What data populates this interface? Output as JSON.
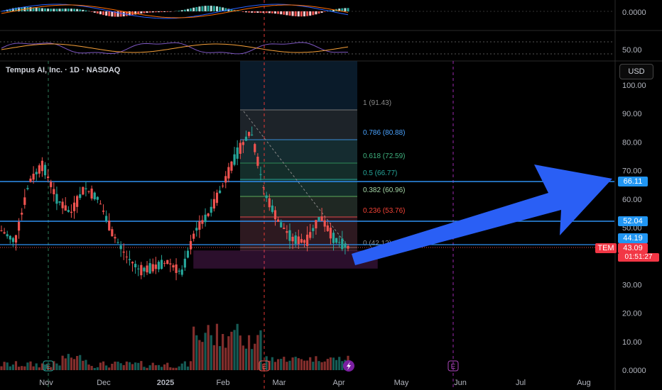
{
  "title": "Tempus AI, Inc. · 1D · NASDAQ",
  "currency": "USD",
  "colors": {
    "bg": "#000000",
    "up": "#26a69a",
    "down": "#ef5350",
    "level": "#2f8ff0",
    "arrow": "#2a5ff5",
    "zone": "#c545c9",
    "divider": "#444"
  },
  "osc": {
    "macd_tick": "0.0000",
    "rsi_tick": "50.00"
  },
  "price_axis": [
    "100.00",
    "90.00",
    "80.00",
    "70.00",
    "60.00",
    "50.00",
    "40.00",
    "30.00",
    "20.00",
    "10.00",
    "0.0000"
  ],
  "time_axis": [
    "Nov",
    "Dec",
    "2025",
    "Feb",
    "Mar",
    "Apr",
    "May",
    "Jun",
    "Jul",
    "Aug"
  ],
  "price_tags": {
    "target": "66.11",
    "r1": "52.04",
    "r2": "44.19",
    "symbol": "TEM",
    "last": "43.09",
    "countdown": "01:51:27"
  },
  "event_markers": [
    "E",
    "E",
    "E"
  ],
  "fib_levels": [
    {
      "ratio": "1",
      "price": "91.43",
      "label": "1 (91.43)"
    },
    {
      "ratio": "0.786",
      "price": "80.88",
      "label": "0.786 (80.88)"
    },
    {
      "ratio": "0.618",
      "price": "72.59",
      "label": "0.618 (72.59)"
    },
    {
      "ratio": "0.5",
      "price": "66.77",
      "label": "0.5 (66.77)"
    },
    {
      "ratio": "0.382",
      "price": "60.96",
      "label": "0.382 (60.96)"
    },
    {
      "ratio": "0.236",
      "price": "53.76",
      "label": "0.236 (53.76)"
    },
    {
      "ratio": "0",
      "price": "42.12",
      "label": "0 (42.12)"
    }
  ],
  "chart_data": {
    "type": "candlestick",
    "title": "Tempus AI, Inc. · 1D · NASDAQ",
    "ylim": [
      0,
      105
    ],
    "horizontal_levels": [
      66.11,
      52.04,
      44.19
    ],
    "zone": [
      36,
      42
    ],
    "volume_scale_note": "",
    "series": [
      {
        "date": "2024-10-16",
        "o": 50,
        "h": 52,
        "c": 49,
        "l": 47
      },
      {
        "date": "2024-10-22",
        "o": 47,
        "h": 49,
        "c": 45,
        "l": 44
      },
      {
        "date": "2024-10-29",
        "o": 46,
        "h": 70,
        "c": 66,
        "l": 44
      },
      {
        "date": "2024-11-05",
        "o": 66,
        "h": 80,
        "c": 72,
        "l": 62
      },
      {
        "date": "2024-11-12",
        "o": 72,
        "h": 74,
        "c": 60,
        "l": 57
      },
      {
        "date": "2024-11-19",
        "o": 60,
        "h": 66,
        "c": 55,
        "l": 52
      },
      {
        "date": "2024-11-26",
        "o": 56,
        "h": 68,
        "c": 64,
        "l": 54
      },
      {
        "date": "2024-12-03",
        "o": 64,
        "h": 68,
        "c": 60,
        "l": 56
      },
      {
        "date": "2024-12-10",
        "o": 60,
        "h": 61,
        "c": 48,
        "l": 46
      },
      {
        "date": "2024-12-17",
        "o": 48,
        "h": 50,
        "c": 40,
        "l": 38
      },
      {
        "date": "2024-12-24",
        "o": 40,
        "h": 42,
        "c": 35,
        "l": 33
      },
      {
        "date": "2024-12-31",
        "o": 35,
        "h": 38,
        "c": 36,
        "l": 33
      },
      {
        "date": "2025-01-07",
        "o": 36,
        "h": 41,
        "c": 38,
        "l": 34
      },
      {
        "date": "2025-01-14",
        "o": 36,
        "h": 38,
        "c": 34,
        "l": 32
      },
      {
        "date": "2025-01-21",
        "o": 38,
        "h": 52,
        "c": 49,
        "l": 37
      },
      {
        "date": "2025-01-28",
        "o": 49,
        "h": 56,
        "c": 55,
        "l": 47
      },
      {
        "date": "2025-02-04",
        "o": 56,
        "h": 67,
        "c": 65,
        "l": 55
      },
      {
        "date": "2025-02-11",
        "o": 66,
        "h": 78,
        "c": 76,
        "l": 64
      },
      {
        "date": "2025-02-18",
        "o": 76,
        "h": 91,
        "c": 84,
        "l": 72
      },
      {
        "date": "2025-02-25",
        "o": 82,
        "h": 83,
        "c": 62,
        "l": 58
      },
      {
        "date": "2025-03-04",
        "o": 62,
        "h": 63,
        "c": 52,
        "l": 48
      },
      {
        "date": "2025-03-11",
        "o": 52,
        "h": 54,
        "c": 46,
        "l": 43
      },
      {
        "date": "2025-03-18",
        "o": 46,
        "h": 50,
        "c": 45,
        "l": 43
      },
      {
        "date": "2025-03-25",
        "o": 46,
        "h": 61,
        "c": 54,
        "l": 44
      },
      {
        "date": "2025-04-01",
        "o": 54,
        "h": 55,
        "c": 46,
        "l": 44
      },
      {
        "date": "2025-04-07",
        "o": 46,
        "h": 48,
        "c": 43.09,
        "l": 42
      }
    ]
  }
}
